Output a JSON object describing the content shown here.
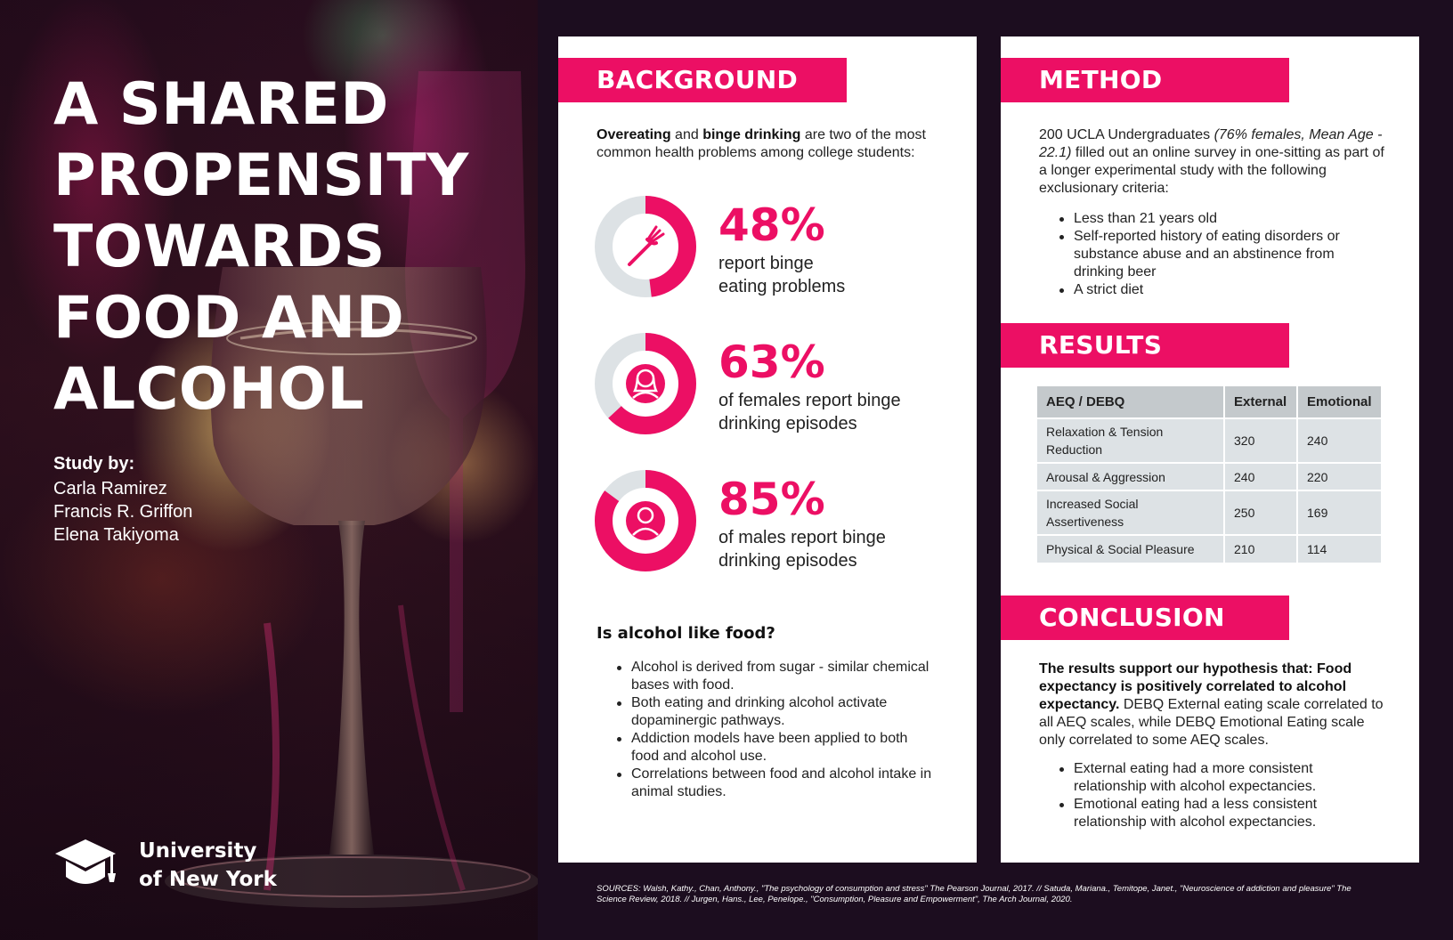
{
  "colors": {
    "accent": "#ec0f64",
    "background": "#1c0d1f",
    "ring_track": "#dde2e5"
  },
  "hero": {
    "title_lines": [
      "A SHARED",
      "PROPENSITY",
      "TOWARDS",
      "FOOD AND",
      "ALCOHOL"
    ],
    "study_by_label": "Study by:",
    "authors": [
      "Carla Ramirez",
      "Francis R. Griffon",
      "Elena Takiyoma"
    ],
    "university_lines": [
      "University",
      "of New York"
    ],
    "university_icon": "graduation-cap-icon"
  },
  "background": {
    "header": "BACKGROUND",
    "intro_bold_1": "Overeating",
    "intro_mid": " and ",
    "intro_bold_2": "binge drinking",
    "intro_rest": " are two of the most common health problems among college students:",
    "stats": [
      {
        "value": 48,
        "label": "48%",
        "desc_lines": [
          "report binge",
          "eating problems"
        ],
        "icon": "fork-icon"
      },
      {
        "value": 63,
        "label": "63%",
        "desc_lines": [
          "of females report binge",
          "drinking episodes"
        ],
        "icon": "female-user-icon"
      },
      {
        "value": 85,
        "label": "85%",
        "desc_lines": [
          "of males report binge",
          "drinking episodes"
        ],
        "icon": "male-user-icon"
      }
    ],
    "question": "Is alcohol like food?",
    "bullets": [
      "Alcohol is derived from sugar - similar chemical bases with food.",
      "Both eating and drinking alcohol activate dopaminergic pathways.",
      "Addiction models have been applied to both food and alcohol use.",
      "Correlations between food and alcohol intake in animal studies."
    ]
  },
  "method": {
    "header": "METHOD",
    "intro_start": "200 UCLA Undergraduates ",
    "intro_italic": "(76% females, Mean Age - 22.1)",
    "intro_end": " filled out an online survey in one-sitting as part of a longer experimental study with the following exclusionary criteria:",
    "bullets": [
      "Less than 21 years old",
      "Self-reported history of eating disorders or substance abuse and an abstinence from drinking beer",
      "A strict diet"
    ]
  },
  "results": {
    "header": "RESULTS",
    "columns": [
      "AEQ / DEBQ",
      "External",
      "Emotional"
    ],
    "rows": [
      {
        "label": "Relaxation & Tension Reduction",
        "external": "320",
        "emotional": "240"
      },
      {
        "label": "Arousal & Aggression",
        "external": "240",
        "emotional": "220"
      },
      {
        "label": "Increased Social Assertiveness",
        "external": "250",
        "emotional": "169"
      },
      {
        "label": "Physical & Social Pleasure",
        "external": "210",
        "emotional": "114"
      }
    ]
  },
  "conclusion": {
    "header": "CONCLUSION",
    "bold": "The results support our hypothesis that: Food expectancy is positively correlated to alcohol expectancy.",
    "rest": " DEBQ External eating scale correlated to all AEQ scales, while DEBQ Emotional Eating scale only correlated to some AEQ scales.",
    "bullets": [
      "External eating had a more consistent relationship with alcohol expectancies.",
      "Emotional eating had a less consistent relationship with alcohol expectancies."
    ]
  },
  "sources": "SOURCES: Walsh, Kathy., Chan, Anthony., \"The psychology of consumption and stress\" The Pearson Journal, 2017. // Satuda, Mariana., Temitope, Janet., \"Neuroscience of addiction and pleasure\" The Science Review, 2018. // Jurgen, Hans., Lee, Penelope., \"Consumption, Pleasure and Empowerment\", The Arch Journal, 2020."
}
